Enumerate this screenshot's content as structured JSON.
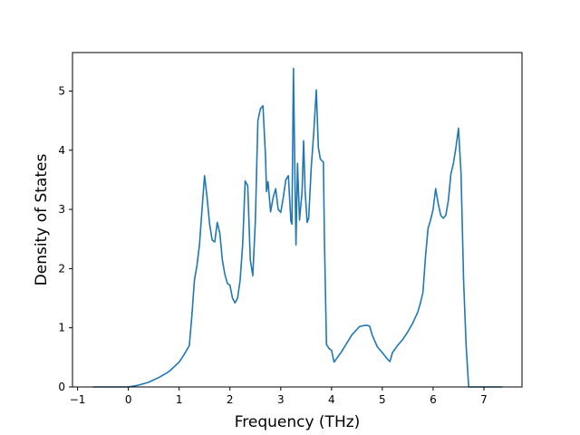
{
  "chart_data": {
    "type": "line",
    "title": "",
    "xlabel": "Frequency (THz)",
    "ylabel": "Density of States",
    "xlim": [
      -1.1,
      7.75
    ],
    "ylim": [
      0,
      5.65
    ],
    "xticks": [
      -1,
      0,
      1,
      2,
      3,
      4,
      5,
      6,
      7
    ],
    "yticks": [
      0,
      1,
      2,
      3,
      4,
      5
    ],
    "xtick_labels": [
      "−1",
      "0",
      "1",
      "2",
      "3",
      "4",
      "5",
      "6",
      "7"
    ],
    "ytick_labels": [
      "0",
      "1",
      "2",
      "3",
      "4",
      "5"
    ],
    "grid": false,
    "colors": {
      "line": "#1f77b4",
      "axes": "#000000",
      "background": "#ffffff"
    },
    "series": [
      {
        "x": [
          -0.68,
          0.0,
          0.2,
          0.4,
          0.6,
          0.8,
          1.0,
          1.1,
          1.2,
          1.25,
          1.3,
          1.35,
          1.4,
          1.45,
          1.5,
          1.55,
          1.6,
          1.65,
          1.7,
          1.75,
          1.8,
          1.85,
          1.9,
          1.95,
          2.0,
          2.05,
          2.1,
          2.15,
          2.2,
          2.25,
          2.3,
          2.35,
          2.4,
          2.45,
          2.5,
          2.55,
          2.6,
          2.65,
          2.7,
          2.72,
          2.75,
          2.8,
          2.85,
          2.9,
          2.95,
          3.0,
          3.05,
          3.1,
          3.15,
          3.2,
          3.22,
          3.25,
          3.28,
          3.3,
          3.33,
          3.37,
          3.42,
          3.45,
          3.48,
          3.52,
          3.55,
          3.6,
          3.65,
          3.7,
          3.74,
          3.78,
          3.84,
          3.86,
          3.9,
          3.95,
          4.0,
          4.05,
          4.2,
          4.4,
          4.55,
          4.6,
          4.65,
          4.7,
          4.75,
          4.8,
          4.9,
          5.0,
          5.1,
          5.15,
          5.2,
          5.3,
          5.4,
          5.5,
          5.6,
          5.7,
          5.75,
          5.8,
          5.85,
          5.9,
          5.95,
          6.0,
          6.05,
          6.1,
          6.15,
          6.2,
          6.25,
          6.3,
          6.35,
          6.4,
          6.45,
          6.5,
          6.55,
          6.6,
          6.65,
          6.7,
          6.8,
          7.0,
          7.35
        ],
        "y": [
          0.0,
          0.0,
          0.03,
          0.08,
          0.16,
          0.26,
          0.42,
          0.55,
          0.7,
          1.2,
          1.8,
          2.05,
          2.4,
          3.0,
          3.57,
          3.2,
          2.75,
          2.48,
          2.45,
          2.78,
          2.6,
          2.15,
          1.9,
          1.75,
          1.72,
          1.5,
          1.42,
          1.5,
          1.8,
          2.4,
          3.48,
          3.4,
          2.15,
          1.88,
          2.8,
          4.5,
          4.7,
          4.75,
          3.9,
          3.3,
          3.47,
          2.96,
          3.2,
          3.35,
          3.0,
          2.95,
          3.2,
          3.5,
          3.57,
          2.8,
          2.75,
          5.38,
          3.5,
          2.4,
          3.78,
          2.82,
          3.3,
          4.16,
          3.3,
          2.78,
          2.85,
          3.7,
          4.3,
          5.02,
          4.05,
          3.85,
          3.8,
          2.5,
          0.72,
          0.65,
          0.62,
          0.42,
          0.6,
          0.88,
          1.02,
          1.03,
          1.04,
          1.04,
          1.03,
          0.88,
          0.68,
          0.58,
          0.47,
          0.43,
          0.58,
          0.7,
          0.8,
          0.93,
          1.08,
          1.27,
          1.42,
          1.6,
          2.2,
          2.68,
          2.82,
          3.0,
          3.35,
          3.1,
          2.9,
          2.85,
          2.9,
          3.15,
          3.6,
          3.78,
          4.05,
          4.37,
          3.6,
          1.8,
          0.7,
          0.0,
          0.0,
          0.0,
          0.0
        ]
      }
    ]
  }
}
